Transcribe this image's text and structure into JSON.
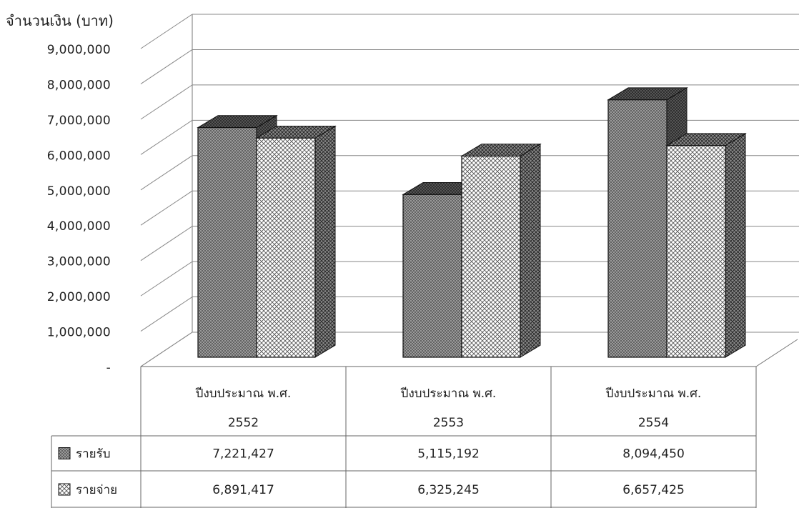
{
  "chart_data": {
    "type": "bar",
    "style": "3d-clustered-with-data-table",
    "title": "",
    "ylabel": "จำนวนเงิน (บาท)",
    "xlabel": "",
    "ylim": [
      0,
      9000000
    ],
    "ytick_step": 1000000,
    "yticks": [
      "-",
      "1,000,000",
      "2,000,000",
      "3,000,000",
      "4,000,000",
      "5,000,000",
      "6,000,000",
      "7,000,000",
      "8,000,000",
      "9,000,000"
    ],
    "grid": true,
    "legend": "in-data-table",
    "categories": [
      {
        "line1": "ปีงบประมาณ พ.ศ.",
        "line2": "2552"
      },
      {
        "line1": "ปีงบประมาณ พ.ศ.",
        "line2": "2553"
      },
      {
        "line1": "ปีงบประมาณ พ.ศ.",
        "line2": "2554"
      }
    ],
    "series": [
      {
        "name": "รายรับ",
        "values": [
          7221427,
          5115192,
          8094450
        ],
        "value_labels": [
          "7,221,427",
          "5,115,192",
          "8,094,450"
        ],
        "pattern": "dense-dots",
        "color": "#8a8a8a"
      },
      {
        "name": "รายจ่าย",
        "values": [
          6891417,
          6325245,
          6657425
        ],
        "value_labels": [
          "6,891,417",
          "6,325,245",
          "6,657,425"
        ],
        "pattern": "crosshatch",
        "color": "#ffffff"
      }
    ]
  }
}
